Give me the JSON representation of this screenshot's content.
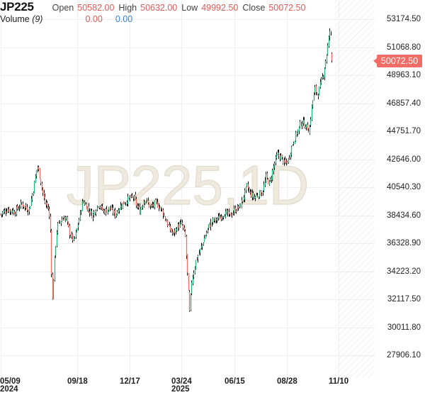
{
  "header": {
    "symbol": "JP225",
    "open_label": "Open",
    "open_value": "50582.00",
    "high_label": "High",
    "high_value": "50632.00",
    "low_label": "Low",
    "low_value": "49992.50",
    "close_label": "Close",
    "close_value": "50072.50",
    "volume_label": "Volume",
    "volume_period": "(9)",
    "volume_value_1": "0.00",
    "volume_value_2": "0.00"
  },
  "watermark": "JP225,1D",
  "last_price_tag": "50072.50",
  "colors": {
    "up": "#26b47f",
    "down": "#ef6f66",
    "wick": "#111111",
    "grid": "#efefef",
    "watermark": "#ece6d8",
    "price_tag": "#f26d66",
    "value_red": "#e15b56",
    "value_blue": "#3a7fdc"
  },
  "y_axis": {
    "ticks": [
      "53174.50",
      "51068.80",
      "48963.10",
      "46857.40",
      "44751.70",
      "42646.00",
      "40540.30",
      "38434.60",
      "36328.90",
      "34223.20",
      "32117.50",
      "30011.80",
      "27906.10"
    ]
  },
  "x_axis": {
    "ticks": [
      {
        "label": "05/09",
        "sub": "2024"
      },
      {
        "label": "09/18",
        "sub": ""
      },
      {
        "label": "12/17",
        "sub": ""
      },
      {
        "label": "03/24",
        "sub": "2025"
      },
      {
        "label": "06/15",
        "sub": ""
      },
      {
        "label": "08/28",
        "sub": ""
      },
      {
        "label": "11/10",
        "sub": ""
      }
    ]
  },
  "chart_data": {
    "type": "candlestick",
    "title": "JP225,1D",
    "symbol": "JP225",
    "interval": "1D",
    "xlabel": "",
    "ylabel": "",
    "ylim": [
      27906.1,
      53174.5
    ],
    "y_ticks": [
      53174.5,
      51068.8,
      48963.1,
      46857.4,
      44751.7,
      42646.0,
      40540.3,
      38434.6,
      36328.9,
      34223.2,
      32117.5,
      30011.8,
      27906.1
    ],
    "x_ticks": [
      "05/09 2024",
      "09/18",
      "12/17",
      "03/24 2025",
      "06/15",
      "08/28",
      "11/10"
    ],
    "last_bar": {
      "open": 50582.0,
      "high": 50632.0,
      "low": 49992.5,
      "close": 50072.5
    },
    "grid": true,
    "approx_close_path": [
      {
        "date": "2024-05-09",
        "close": 38500
      },
      {
        "date": "2024-06-15",
        "close": 38900
      },
      {
        "date": "2024-07-11",
        "close": 42200
      },
      {
        "date": "2024-07-31",
        "close": 39000
      },
      {
        "date": "2024-08-05",
        "close": 31500
      },
      {
        "date": "2024-08-20",
        "close": 38000
      },
      {
        "date": "2024-09-10",
        "close": 36500
      },
      {
        "date": "2024-09-18",
        "close": 37500
      },
      {
        "date": "2024-10-15",
        "close": 39800
      },
      {
        "date": "2024-11-15",
        "close": 38600
      },
      {
        "date": "2024-12-17",
        "close": 39300
      },
      {
        "date": "2025-01-15",
        "close": 38800
      },
      {
        "date": "2025-02-15",
        "close": 39200
      },
      {
        "date": "2025-03-10",
        "close": 37000
      },
      {
        "date": "2025-03-24",
        "close": 37600
      },
      {
        "date": "2025-04-07",
        "close": 31000
      },
      {
        "date": "2025-04-25",
        "close": 35500
      },
      {
        "date": "2025-05-15",
        "close": 37700
      },
      {
        "date": "2025-06-15",
        "close": 38300
      },
      {
        "date": "2025-07-10",
        "close": 39700
      },
      {
        "date": "2025-07-25",
        "close": 41300
      },
      {
        "date": "2025-08-15",
        "close": 43000
      },
      {
        "date": "2025-08-28",
        "close": 42500
      },
      {
        "date": "2025-09-20",
        "close": 45500
      },
      {
        "date": "2025-10-10",
        "close": 47800
      },
      {
        "date": "2025-10-28",
        "close": 50500
      },
      {
        "date": "2025-11-04",
        "close": 52600
      },
      {
        "date": "2025-11-06",
        "close": 50072.5
      }
    ]
  }
}
